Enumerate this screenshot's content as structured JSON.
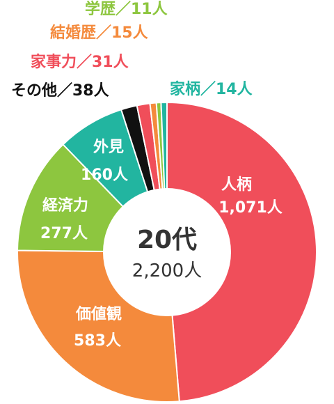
{
  "chart_data": {
    "type": "pie",
    "center": {
      "title": "20代",
      "subtitle": "2,200人"
    },
    "total": 2200,
    "slices": [
      {
        "name": "人柄",
        "value": 1071,
        "value_label": "1,071人",
        "color": "#f04e5a",
        "label_position": "inside"
      },
      {
        "name": "価値観",
        "value": 583,
        "value_label": "583人",
        "color": "#f48a3c",
        "label_position": "inside"
      },
      {
        "name": "経済力",
        "value": 277,
        "value_label": "277人",
        "color": "#8dc63f",
        "label_position": "inside"
      },
      {
        "name": "外見",
        "value": 160,
        "value_label": "160人",
        "color": "#22b5a0",
        "label_position": "inside"
      },
      {
        "name": "その他",
        "value": 38,
        "value_label": "38人",
        "color": "#111111",
        "label_position": "outside",
        "label_text": "その他／38人"
      },
      {
        "name": "家事力",
        "value": 31,
        "value_label": "31人",
        "color": "#f04e5a",
        "label_position": "outside",
        "label_text": "家事力／31人"
      },
      {
        "name": "結婚歴",
        "value": 15,
        "value_label": "15人",
        "color": "#f48a3c",
        "label_position": "outside",
        "label_text": "結婚歴／15人"
      },
      {
        "name": "学歴",
        "value": 11,
        "value_label": "11人",
        "color": "#8dc63f",
        "label_position": "outside",
        "label_text": "学歴／11人"
      },
      {
        "name": "家柄",
        "value": 14,
        "value_label": "14人",
        "color": "#22b5a0",
        "label_position": "outside",
        "label_text": "家柄／14人"
      }
    ]
  }
}
